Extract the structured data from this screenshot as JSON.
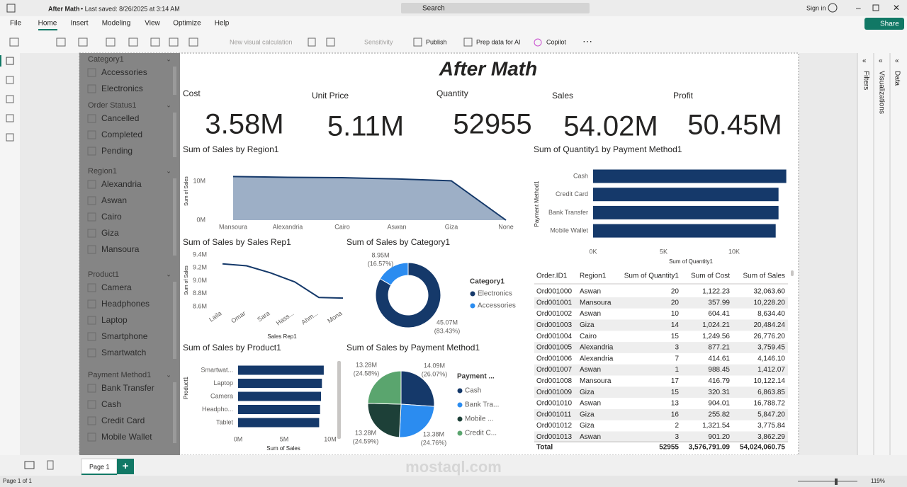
{
  "titlebar": {
    "file": "After Math",
    "saved": "• Last saved: 8/26/2025 at 3:14 AM",
    "search": "Search",
    "signin": "Sign in"
  },
  "tabs": [
    "File",
    "Home",
    "Insert",
    "Modeling",
    "View",
    "Optimize",
    "Help"
  ],
  "share": "Share",
  "toolbar": [
    "New visual calculation",
    "Sensitivity",
    "Publish",
    "Prep data for AI",
    "Copilot"
  ],
  "slicers": [
    {
      "title": "Category1",
      "items": [
        "Accessories",
        "Electronics"
      ]
    },
    {
      "title": "Order Status1",
      "items": [
        "Cancelled",
        "Completed",
        "Pending"
      ]
    },
    {
      "title": "Region1",
      "items": [
        "Alexandria",
        "Aswan",
        "Cairo",
        "Giza",
        "Mansoura"
      ]
    },
    {
      "title": "Product1",
      "items": [
        "Camera",
        "Headphones",
        "Laptop",
        "Smartphone",
        "Smartwatch"
      ]
    },
    {
      "title": "Payment Method1",
      "items": [
        "Bank Transfer",
        "Cash",
        "Credit Card",
        "Mobile Wallet"
      ]
    }
  ],
  "report_title": "After Math",
  "cards": [
    {
      "label": "Cost",
      "value": "3.58M"
    },
    {
      "label": "Unit Price",
      "value": "5.11M"
    },
    {
      "label": "Quantity",
      "value": "52955"
    },
    {
      "label": "Sales",
      "value": "54.02M"
    },
    {
      "label": "Profit",
      "value": "50.45M"
    }
  ],
  "region_chart": {
    "type": "area",
    "title": "Sum of Sales by Region1",
    "y_label": "Sum of Sales",
    "categories": [
      "Mansoura",
      "Alexandria",
      "Cairo",
      "Aswan",
      "Giza",
      "None"
    ],
    "values": [
      11200000,
      11000000,
      10900000,
      10600000,
      10100000,
      0
    ],
    "ylim": [
      0,
      12000000
    ],
    "yticks": [
      {
        "value": 0,
        "label": "0M"
      },
      {
        "value": 10000000,
        "label": "10M"
      }
    ],
    "color": "#15396a",
    "fill": "#9dafc6"
  },
  "payment_quantity_chart": {
    "type": "hbar",
    "title": "Sum of Quantity1 by Payment Method1",
    "x_label": "Sum of Quantity1",
    "y_label": "Payment Method1",
    "categories": [
      "Cash",
      "Credit Card",
      "Bank Transfer",
      "Mobile Wallet"
    ],
    "values": [
      13700,
      13150,
      13150,
      12950
    ],
    "xlim": [
      0,
      14000
    ],
    "xticks": [
      {
        "value": 0,
        "label": "0K"
      },
      {
        "value": 5000,
        "label": "5K"
      },
      {
        "value": 10000,
        "label": "10K"
      }
    ],
    "color": "#15396a"
  },
  "rep_chart": {
    "type": "line",
    "title": "Sum of Sales by Sales Rep1",
    "x_label": "Sales Rep1",
    "y_label": "Sum of Sales",
    "categories": [
      "Laila",
      "Omar",
      "Sara",
      "Hass...",
      "Ahm...",
      "Mona"
    ],
    "values": [
      9260000,
      9230000,
      9120000,
      8980000,
      8740000,
      8730000
    ],
    "ylim": [
      8600000,
      9400000
    ],
    "yticks": [
      {
        "value": 8600000,
        "label": "8.6M"
      },
      {
        "value": 8800000,
        "label": "8.8M"
      },
      {
        "value": 9000000,
        "label": "9.0M"
      },
      {
        "value": 9200000,
        "label": "9.2M"
      },
      {
        "value": 9400000,
        "label": "9.4M"
      }
    ],
    "color": "#15396a"
  },
  "category_chart": {
    "type": "donut",
    "title": "Sum of Sales by Category1",
    "legend_title": "Category1",
    "categories": [
      "Electronics",
      "Accessories"
    ],
    "values": [
      45070000,
      8950000
    ],
    "value_labels": [
      "45.07M",
      "8.95M"
    ],
    "percent_labels": [
      "(83.43%)",
      "(16.57%)"
    ],
    "colors": [
      "#15396a",
      "#2b8cf0"
    ]
  },
  "product_chart": {
    "type": "hbar",
    "title": "Sum of Sales by Product1",
    "x_label": "Sum of Sales",
    "y_label": "Product1",
    "categories": [
      "Smartwat...",
      "Laptop",
      "Camera",
      "Headpho...",
      "Tablet"
    ],
    "values": [
      9300000,
      9100000,
      9000000,
      8900000,
      8800000
    ],
    "xlim": [
      0,
      10000000
    ],
    "xticks": [
      {
        "value": 0,
        "label": "0M"
      },
      {
        "value": 5000000,
        "label": "5M"
      },
      {
        "value": 10000000,
        "label": "10M"
      }
    ],
    "color": "#15396a"
  },
  "payment_sales_chart": {
    "type": "pie",
    "title": "Sum of Sales by Payment Method1",
    "legend_title": "Payment ...",
    "categories": [
      "Cash",
      "Bank Tra...",
      "Mobile ...",
      "Credit C..."
    ],
    "values": [
      14090000,
      13380000,
      13280000,
      13280000
    ],
    "value_labels": [
      "14.09M",
      "13.38M",
      "13.28M",
      "13.28M"
    ],
    "percent_labels": [
      "(26.07%)",
      "(24.76%)",
      "(24.59%)",
      "(24.58%)"
    ],
    "colors": [
      "#15396a",
      "#2b8cf0",
      "#1d4038",
      "#5aa56e"
    ]
  },
  "table": {
    "columns": [
      "Order.ID1",
      "Region1",
      "Sum of Quantity1",
      "Sum of Cost",
      "Sum of Sales"
    ],
    "rows": [
      [
        "Ord001000",
        "Aswan",
        "20",
        "1,122.23",
        "32,063.60"
      ],
      [
        "Ord001001",
        "Mansoura",
        "20",
        "357.99",
        "10,228.20"
      ],
      [
        "Ord001002",
        "Aswan",
        "10",
        "604.41",
        "8,634.40"
      ],
      [
        "Ord001003",
        "Giza",
        "14",
        "1,024.21",
        "20,484.24"
      ],
      [
        "Ord001004",
        "Cairo",
        "15",
        "1,249.56",
        "26,776.20"
      ],
      [
        "Ord001005",
        "Alexandria",
        "3",
        "877.21",
        "3,759.45"
      ],
      [
        "Ord001006",
        "Alexandria",
        "7",
        "414.61",
        "4,146.10"
      ],
      [
        "Ord001007",
        "Aswan",
        "1",
        "988.45",
        "1,412.07"
      ],
      [
        "Ord001008",
        "Mansoura",
        "17",
        "416.79",
        "10,122.14"
      ],
      [
        "Ord001009",
        "Giza",
        "15",
        "320.31",
        "6,863.85"
      ],
      [
        "Ord001010",
        "Aswan",
        "13",
        "904.01",
        "16,788.72"
      ],
      [
        "Ord001011",
        "Giza",
        "16",
        "255.82",
        "5,847.20"
      ],
      [
        "Ord001012",
        "Giza",
        "2",
        "1,321.54",
        "3,775.84"
      ],
      [
        "Ord001013",
        "Aswan",
        "3",
        "901.20",
        "3,862.29"
      ]
    ],
    "total": [
      "Total",
      "52955",
      "3,576,791.09",
      "54,024,060.75"
    ]
  },
  "panes": [
    "Filters",
    "Visualizations",
    "Data"
  ],
  "footer": {
    "tab": "Page 1",
    "status": "Page 1 of 1",
    "zoom": "119%"
  },
  "watermark": "mostaql.com"
}
